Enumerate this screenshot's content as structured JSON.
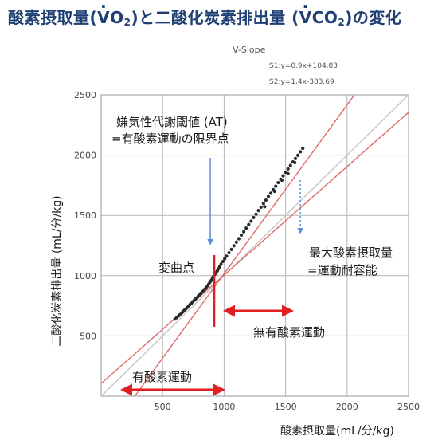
{
  "title": {
    "prefix": "酸素摂取量(",
    "v1": "V",
    "o2": "O",
    "sub1": "2",
    "middle": ")と二酸化炭素排出量 (",
    "v2": "V",
    "co2": "CO",
    "sub2": "2",
    "suffix": ")の変化"
  },
  "chart_data": {
    "type": "scatter",
    "title": "V-Slope",
    "xlabel": "酸素摂取量(mL/分/kg)",
    "ylabel": "二酸化炭素排出量 (mL/分/kg)",
    "xlim": [
      0,
      2500
    ],
    "ylim": [
      0,
      2500
    ],
    "xticks": [
      500,
      1000,
      1500,
      2000,
      2500
    ],
    "yticks": [
      500,
      1000,
      1500,
      2000,
      2500
    ],
    "xtick_labels": [
      "500",
      "1000",
      "1500",
      "2000",
      "2500"
    ],
    "ytick_labels": [
      "500",
      "1000",
      "1500",
      "2000",
      "2500"
    ],
    "grid": true,
    "regression": [
      {
        "name": "S1",
        "equation": "S1:y=0.9x+104.83",
        "slope": 0.9,
        "intercept": 104.83,
        "color": "#e06a6a"
      },
      {
        "name": "S2",
        "equation": "S2:y=1.4x-383.69",
        "slope": 1.4,
        "intercept": -383.69,
        "color": "#e06a6a"
      }
    ],
    "identity_line": {
      "slope": 1,
      "intercept": 0,
      "color": "#c8c8c8"
    },
    "points": {
      "color": "#2a2a2a",
      "x": [
        600,
        615,
        630,
        640,
        655,
        665,
        675,
        690,
        700,
        712,
        722,
        735,
        745,
        758,
        768,
        780,
        790,
        802,
        812,
        822,
        835,
        845,
        855,
        865,
        875,
        885,
        895,
        905,
        912,
        920,
        928,
        935,
        945,
        955,
        965,
        975,
        990,
        1005,
        1020,
        1040,
        1060,
        1080,
        1100,
        1120,
        1140,
        1160,
        1180,
        1200,
        1220,
        1240,
        1260,
        1280,
        1300,
        1320,
        1340,
        1360,
        1380,
        1400,
        1420,
        1440,
        1460,
        1480,
        1500,
        1520,
        1540,
        1560,
        1580,
        1600,
        1620,
        1640,
        1330,
        1410,
        1470,
        1520,
        1575
      ],
      "y": [
        640,
        652,
        665,
        676,
        690,
        700,
        712,
        725,
        736,
        748,
        760,
        772,
        784,
        796,
        808,
        818,
        830,
        842,
        854,
        866,
        878,
        890,
        902,
        915,
        930,
        945,
        960,
        978,
        992,
        1005,
        1015,
        1025,
        1040,
        1058,
        1075,
        1095,
        1118,
        1140,
        1162,
        1190,
        1218,
        1248,
        1278,
        1306,
        1336,
        1364,
        1394,
        1424,
        1452,
        1482,
        1510,
        1540,
        1568,
        1598,
        1626,
        1656,
        1684,
        1714,
        1742,
        1772,
        1800,
        1828,
        1858,
        1886,
        1915,
        1944,
        1972,
        1998,
        2028,
        2056,
        1572,
        1700,
        1792,
        1846,
        1938
      ]
    },
    "annotations": {
      "at_label_1": "嫌気性代謝閾値 (AT)",
      "at_label_2": "=有酸素運動の限界点",
      "inflection_label": "変曲点",
      "vo2max_label_1": "最大酸素摂取量",
      "vo2max_label_2": "=運動耐容能",
      "anaerobic_label": "無有酸素運動",
      "aerobic_label": "有酸素運動",
      "at_x": 920,
      "vo2max_x": 1620
    },
    "arrows": {
      "at_arrow_color": "#5b8fd6",
      "inflection_marker_color": "#e02020",
      "range_arrow_color": "#e02020"
    }
  }
}
